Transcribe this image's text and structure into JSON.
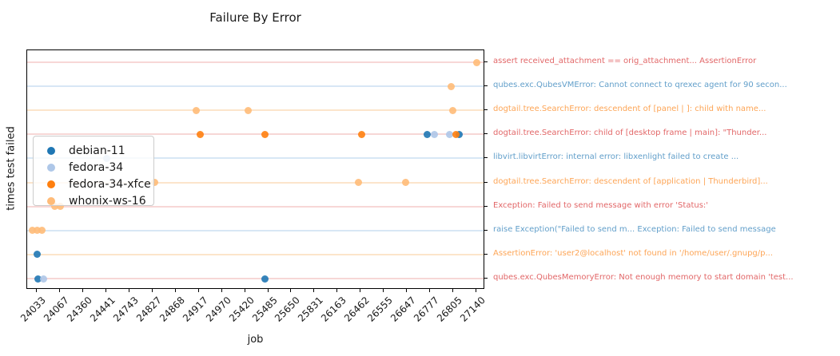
{
  "chart_data": {
    "type": "scatter",
    "title": "Failure By Error",
    "xlabel": "job",
    "ylabel": "times test failed",
    "x_categories": [
      "24033",
      "24067",
      "24360",
      "24441",
      "24743",
      "24827",
      "24868",
      "24917",
      "24970",
      "25420",
      "25485",
      "25650",
      "25831",
      "26163",
      "26462",
      "26555",
      "26647",
      "26777",
      "26805",
      "27140"
    ],
    "row_order": "top-to-bottom",
    "label_colors": {
      "red": "#e26768",
      "blue": "#629fca",
      "orange": "#fda556"
    },
    "line_colors": {
      "red": "#f7d7d6",
      "blue": "#d8e7f5",
      "orange": "#fce5cb"
    },
    "series": [
      {
        "name": "debian-11",
        "color": "#1f77b4"
      },
      {
        "name": "fedora-34",
        "color": "#aec7e8"
      },
      {
        "name": "fedora-34-xfce",
        "color": "#ff7f0e"
      },
      {
        "name": "whonix-ws-16",
        "color": "#ffbb78"
      }
    ],
    "rows": [
      {
        "label": "assert received_attachment == orig_attachment... AssertionError",
        "color": "red",
        "points": [
          {
            "os": "whonix-ws-16",
            "job": "27140",
            "job_index": 19,
            "dx": 0
          }
        ]
      },
      {
        "label": "qubes.exc.QubesVMError: Cannot connect to qrexec agent for 90 secon...",
        "color": "blue",
        "points": [
          {
            "os": "whonix-ws-16",
            "job": "26805",
            "job_index": 18,
            "dx": -3
          }
        ]
      },
      {
        "label": "dogtail.tree.SearchError: descendent of [panel | ]: child with name...",
        "color": "orange",
        "points": [
          {
            "os": "whonix-ws-16",
            "job": "24917",
            "job_index": 7,
            "dx": -3
          },
          {
            "os": "whonix-ws-16",
            "job": "25420",
            "job_index": 9,
            "dx": 4
          },
          {
            "os": "whonix-ws-16",
            "job": "26805",
            "job_index": 18,
            "dx": -1
          }
        ]
      },
      {
        "label": "dogtail.tree.SearchError: child of [desktop frame | main]: \"Thunder...",
        "color": "red",
        "points": [
          {
            "os": "debian-11",
            "job": "26777",
            "job_index": 17,
            "dx": -4
          },
          {
            "os": "debian-11",
            "job": "26805",
            "job_index": 18,
            "dx": 7
          },
          {
            "os": "fedora-34",
            "job": "26777",
            "job_index": 17,
            "dx": 5
          },
          {
            "os": "fedora-34",
            "job": "26805",
            "job_index": 18,
            "dx": -5
          },
          {
            "os": "fedora-34-xfce",
            "job": "24917",
            "job_index": 7,
            "dx": 2
          },
          {
            "os": "fedora-34-xfce",
            "job": "25485",
            "job_index": 10,
            "dx": -4
          },
          {
            "os": "fedora-34-xfce",
            "job": "26462",
            "job_index": 14,
            "dx": 1
          },
          {
            "os": "fedora-34-xfce",
            "job": "26805",
            "job_index": 18,
            "dx": 3
          }
        ]
      },
      {
        "label": "libvirt.libvirtError: internal error: libxenlight failed to create ...",
        "color": "blue",
        "points": [
          {
            "os": "fedora-34",
            "job": "24441",
            "job_index": 3,
            "dx": 1
          }
        ]
      },
      {
        "label": "dogtail.tree.SearchError: descendent of [application | Thunderbird]...",
        "color": "orange",
        "points": [
          {
            "os": "whonix-ws-16",
            "job": "24827",
            "job_index": 5,
            "dx": 3
          },
          {
            "os": "whonix-ws-16",
            "job": "26462",
            "job_index": 14,
            "dx": -3
          },
          {
            "os": "whonix-ws-16",
            "job": "26647",
            "job_index": 16,
            "dx": -2
          }
        ]
      },
      {
        "label": "Exception: Failed to send message with error 'Status:'",
        "color": "red",
        "points": [
          {
            "os": "whonix-ws-16",
            "job": "24067",
            "job_index": 1,
            "dx": -6
          },
          {
            "os": "whonix-ws-16",
            "job": "24067",
            "job_index": 1,
            "dx": 1
          }
        ]
      },
      {
        "label": "raise Exception(\"Failed to send m... Exception: Failed to send message",
        "color": "blue",
        "points": [
          {
            "os": "whonix-ws-16",
            "job": "24033",
            "job_index": 0,
            "dx": -6
          },
          {
            "os": "whonix-ws-16",
            "job": "24033",
            "job_index": 0,
            "dx": 0
          },
          {
            "os": "whonix-ws-16",
            "job": "24033",
            "job_index": 0,
            "dx": 6
          }
        ]
      },
      {
        "label": "AssertionError: 'user2@localhost' not found in '/home/user/.gnupg/p...",
        "color": "orange",
        "points": [
          {
            "os": "debian-11",
            "job": "24033",
            "job_index": 0,
            "dx": 0
          }
        ]
      },
      {
        "label": "qubes.exc.QubesMemoryError: Not enough memory to start domain 'test...",
        "color": "red",
        "points": [
          {
            "os": "debian-11",
            "job": "24033",
            "job_index": 0,
            "dx": 1
          },
          {
            "os": "fedora-34",
            "job": "24033",
            "job_index": 0,
            "dx": 8
          },
          {
            "os": "debian-11",
            "job": "25485",
            "job_index": 10,
            "dx": -4
          }
        ]
      }
    ]
  }
}
